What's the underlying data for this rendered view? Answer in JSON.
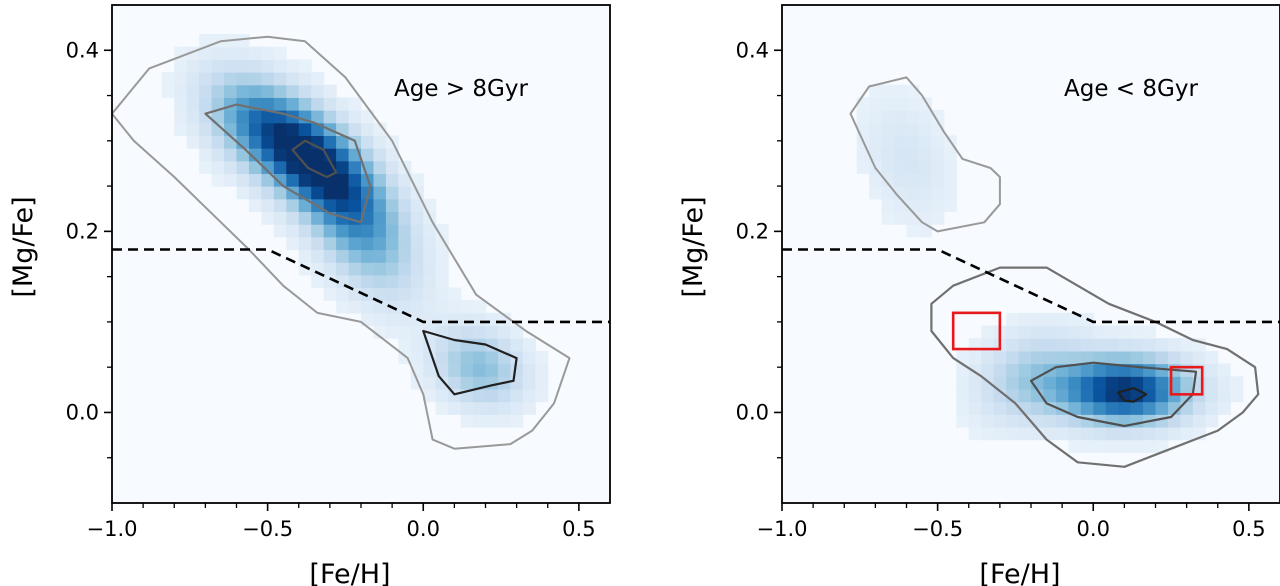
{
  "chart_data": [
    {
      "type": "heatmap",
      "title": "",
      "xlabel": "[Fe/H]",
      "ylabel": "[Mg/Fe]",
      "xlim": [
        -1.0,
        0.6
      ],
      "ylim": [
        -0.1,
        0.45
      ],
      "xticks": [
        -1.0,
        -0.5,
        0.0,
        0.5
      ],
      "xtick_labels": [
        "−1.0",
        "−0.5",
        "0.0",
        "0.5"
      ],
      "yticks": [
        0.0,
        0.2,
        0.4
      ],
      "ytick_labels": [
        "0.0",
        "0.2",
        "0.4"
      ],
      "annotation": "Age > 8Gyr",
      "colormap": "Blues",
      "grid": false,
      "dividing_line": [
        {
          "x": -1.0,
          "y": 0.18
        },
        {
          "x": -0.5,
          "y": 0.18
        },
        {
          "x": 0.0,
          "y": 0.1
        },
        {
          "x": 0.6,
          "y": 0.1
        }
      ],
      "density_peaks": [
        {
          "x": -0.36,
          "y": 0.28,
          "sx": 0.14,
          "sy": 0.045,
          "rho": -0.6,
          "w": 1.0
        },
        {
          "x": -0.2,
          "y": 0.2,
          "sx": 0.12,
          "sy": 0.05,
          "rho": -0.5,
          "w": 0.45
        },
        {
          "x": 0.18,
          "y": 0.05,
          "sx": 0.1,
          "sy": 0.03,
          "rho": -0.2,
          "w": 0.4
        },
        {
          "x": -0.55,
          "y": 0.32,
          "sx": 0.12,
          "sy": 0.04,
          "rho": -0.4,
          "w": 0.35
        }
      ],
      "contours": [
        [
          [
            -1.0,
            0.33
          ],
          [
            -0.88,
            0.38
          ],
          [
            -0.65,
            0.41
          ],
          [
            -0.5,
            0.415
          ],
          [
            -0.38,
            0.41
          ],
          [
            -0.25,
            0.37
          ],
          [
            -0.1,
            0.3
          ],
          [
            0.03,
            0.21
          ],
          [
            0.17,
            0.13
          ],
          [
            0.33,
            0.09
          ],
          [
            0.47,
            0.06
          ],
          [
            0.42,
            0.01
          ],
          [
            0.35,
            -0.02
          ],
          [
            0.28,
            -0.035
          ],
          [
            0.1,
            -0.04
          ],
          [
            0.03,
            -0.03
          ],
          [
            0.0,
            0.02
          ],
          [
            -0.05,
            0.06
          ],
          [
            -0.2,
            0.1
          ],
          [
            -0.34,
            0.11
          ],
          [
            -0.45,
            0.14
          ],
          [
            -0.56,
            0.18
          ],
          [
            -0.65,
            0.21
          ],
          [
            -0.8,
            0.26
          ],
          [
            -0.93,
            0.3
          ]
        ],
        [
          [
            -0.7,
            0.33
          ],
          [
            -0.6,
            0.34
          ],
          [
            -0.45,
            0.33
          ],
          [
            -0.35,
            0.32
          ],
          [
            -0.22,
            0.3
          ],
          [
            -0.17,
            0.25
          ],
          [
            -0.2,
            0.21
          ],
          [
            -0.3,
            0.22
          ],
          [
            -0.45,
            0.25
          ],
          [
            -0.57,
            0.29
          ]
        ],
        [
          [
            -0.42,
            0.29
          ],
          [
            -0.38,
            0.3
          ],
          [
            -0.32,
            0.29
          ],
          [
            -0.28,
            0.265
          ],
          [
            -0.31,
            0.26
          ],
          [
            -0.37,
            0.27
          ]
        ],
        [
          [
            0.0,
            0.09
          ],
          [
            0.1,
            0.08
          ],
          [
            0.2,
            0.075
          ],
          [
            0.3,
            0.06
          ],
          [
            0.29,
            0.035
          ],
          [
            0.22,
            0.03
          ],
          [
            0.1,
            0.02
          ],
          [
            0.05,
            0.04
          ],
          [
            0.02,
            0.07
          ]
        ]
      ]
    },
    {
      "type": "heatmap",
      "title": "",
      "xlabel": "[Fe/H]",
      "ylabel": "[Mg/Fe]",
      "xlim": [
        -1.0,
        0.6
      ],
      "ylim": [
        -0.1,
        0.45
      ],
      "xticks": [
        -1.0,
        -0.5,
        0.0,
        0.5
      ],
      "xtick_labels": [
        "−1.0",
        "−0.5",
        "0.0",
        "0.5"
      ],
      "yticks": [
        0.0,
        0.2,
        0.4
      ],
      "ytick_labels": [
        "0.0",
        "0.2",
        "0.4"
      ],
      "annotation": "Age < 8Gyr",
      "colormap": "Blues",
      "grid": false,
      "dividing_line": [
        {
          "x": -1.0,
          "y": 0.18
        },
        {
          "x": -0.5,
          "y": 0.18
        },
        {
          "x": 0.0,
          "y": 0.1
        },
        {
          "x": 0.6,
          "y": 0.1
        }
      ],
      "density_peaks": [
        {
          "x": 0.1,
          "y": 0.025,
          "sx": 0.14,
          "sy": 0.025,
          "rho": 0.0,
          "w": 1.0
        },
        {
          "x": -0.2,
          "y": 0.04,
          "sx": 0.12,
          "sy": 0.035,
          "rho": 0.2,
          "w": 0.3
        },
        {
          "x": -0.6,
          "y": 0.28,
          "sx": 0.1,
          "sy": 0.05,
          "rho": -0.3,
          "w": 0.12
        }
      ],
      "contours": [
        [
          [
            -0.78,
            0.33
          ],
          [
            -0.72,
            0.36
          ],
          [
            -0.6,
            0.37
          ],
          [
            -0.55,
            0.35
          ],
          [
            -0.48,
            0.31
          ],
          [
            -0.42,
            0.28
          ],
          [
            -0.33,
            0.27
          ],
          [
            -0.3,
            0.26
          ],
          [
            -0.3,
            0.23
          ],
          [
            -0.35,
            0.21
          ],
          [
            -0.5,
            0.2
          ],
          [
            -0.55,
            0.21
          ],
          [
            -0.63,
            0.24
          ],
          [
            -0.7,
            0.27
          ]
        ],
        [
          [
            -0.52,
            0.12
          ],
          [
            -0.45,
            0.14
          ],
          [
            -0.3,
            0.16
          ],
          [
            -0.15,
            0.16
          ],
          [
            -0.05,
            0.14
          ],
          [
            0.05,
            0.12
          ],
          [
            0.2,
            0.1
          ],
          [
            0.32,
            0.08
          ],
          [
            0.43,
            0.07
          ],
          [
            0.52,
            0.05
          ],
          [
            0.53,
            0.02
          ],
          [
            0.48,
            0.0
          ],
          [
            0.4,
            -0.02
          ],
          [
            0.25,
            -0.04
          ],
          [
            0.1,
            -0.06
          ],
          [
            -0.05,
            -0.055
          ],
          [
            -0.15,
            -0.03
          ],
          [
            -0.25,
            0.01
          ],
          [
            -0.36,
            0.04
          ],
          [
            -0.45,
            0.06
          ],
          [
            -0.52,
            0.09
          ]
        ],
        [
          [
            -0.2,
            0.035
          ],
          [
            -0.12,
            0.05
          ],
          [
            0.0,
            0.055
          ],
          [
            0.15,
            0.05
          ],
          [
            0.33,
            0.045
          ],
          [
            0.32,
            0.02
          ],
          [
            0.25,
            -0.005
          ],
          [
            0.1,
            -0.015
          ],
          [
            -0.05,
            -0.005
          ],
          [
            -0.15,
            0.01
          ]
        ],
        [
          [
            0.08,
            0.022
          ],
          [
            0.13,
            0.027
          ],
          [
            0.17,
            0.02
          ],
          [
            0.13,
            0.012
          ],
          [
            0.1,
            0.013
          ]
        ]
      ],
      "highlight_boxes": [
        {
          "x0": -0.45,
          "x1": -0.3,
          "y0": 0.07,
          "y1": 0.11
        },
        {
          "x0": 0.25,
          "x1": 0.35,
          "y0": 0.02,
          "y1": 0.05
        }
      ]
    }
  ]
}
